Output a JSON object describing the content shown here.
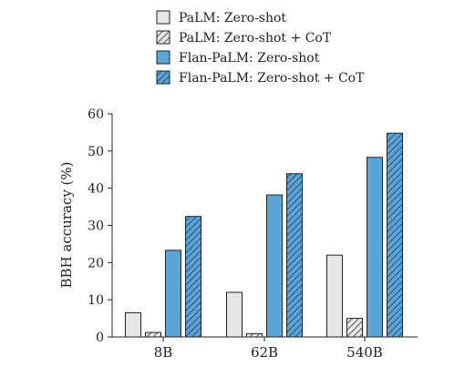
{
  "chart_data": {
    "type": "bar",
    "categories": [
      "8B",
      "62B",
      "540B"
    ],
    "series": [
      {
        "name": "PaLM: Zero-shot",
        "values": [
          6.5,
          12.0,
          22.0
        ],
        "color": "#e6e6e6",
        "hatched": false
      },
      {
        "name": "PaLM: Zero-shot + CoT",
        "values": [
          1.2,
          0.9,
          5.0
        ],
        "color": "#e6e6e6",
        "hatched": true
      },
      {
        "name": "Flan-PaLM: Zero-shot",
        "values": [
          23.3,
          38.2,
          48.3
        ],
        "color": "#5aa5d8",
        "hatched": false
      },
      {
        "name": "Flan-PaLM: Zero-shot + CoT",
        "values": [
          32.4,
          43.9,
          54.8
        ],
        "color": "#5aa5d8",
        "hatched": true
      }
    ],
    "ylabel": "BBH accuracy (%)",
    "xlabel": "",
    "ylim": [
      0,
      60
    ],
    "yticks": [
      0,
      10,
      20,
      30,
      40,
      50,
      60
    ],
    "grid": false,
    "legend_position": "top"
  }
}
